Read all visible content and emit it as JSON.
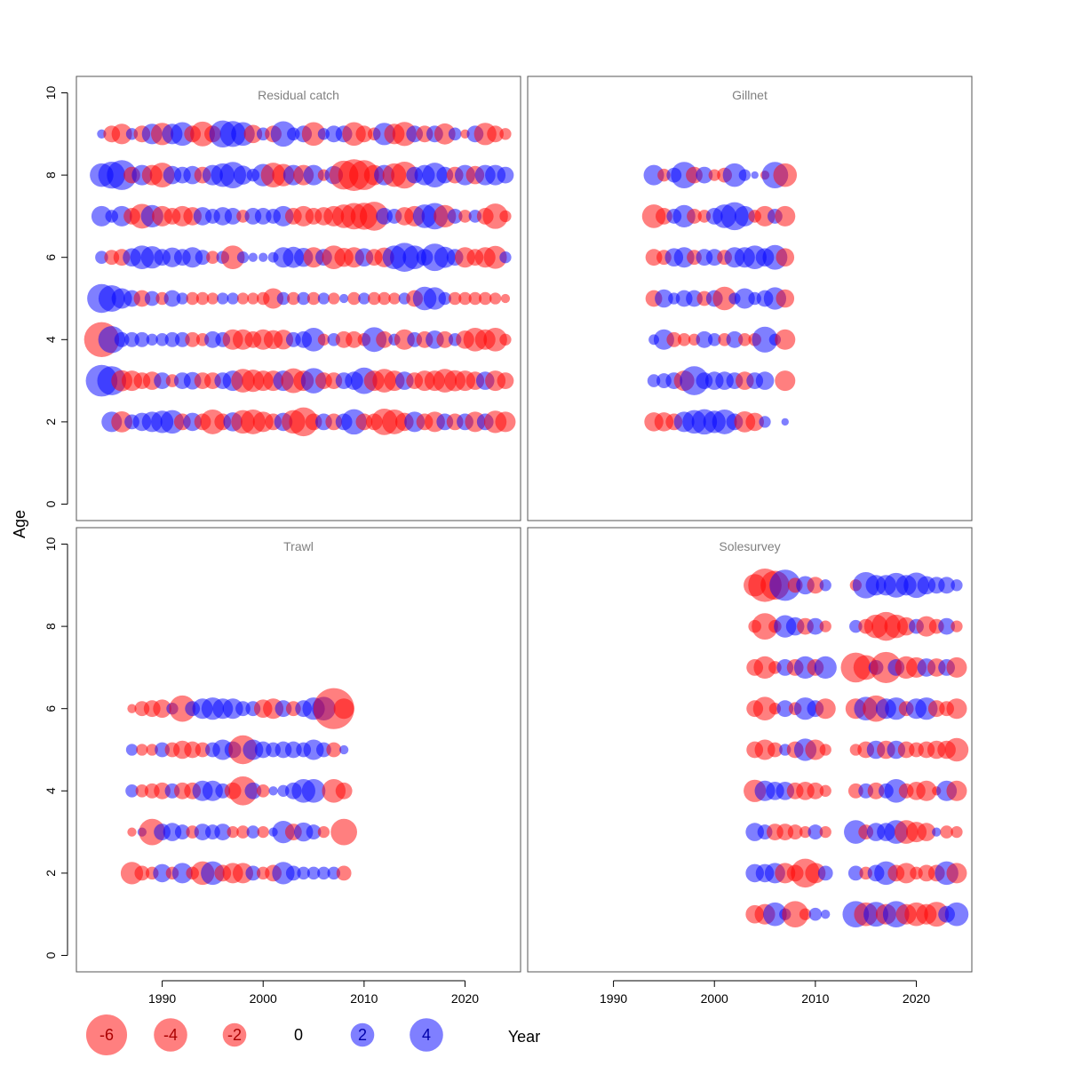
{
  "chart_data": {
    "type": "scatter",
    "style": "bubble",
    "xlabel": "Year",
    "ylabel": "Age",
    "xlim": [
      1981.5,
      2025.5
    ],
    "ylim": [
      -0.4,
      10.4
    ],
    "xticks": [
      1990,
      2000,
      2010,
      2020
    ],
    "yticks": [
      0,
      2,
      4,
      6,
      8,
      10
    ],
    "grid": false,
    "colors": {
      "positive": "#0000ff",
      "negative": "#ff0000",
      "opacity": 0.5
    },
    "panels": [
      {
        "title": "Residual catch",
        "ages": [
          2,
          3,
          4,
          5,
          6,
          7,
          8,
          9
        ],
        "years": [
          1984,
          1985,
          1986,
          1987,
          1988,
          1989,
          1990,
          1991,
          1992,
          1993,
          1994,
          1995,
          1996,
          1997,
          1998,
          1999,
          2000,
          2001,
          2002,
          2003,
          2004,
          2005,
          2006,
          2007,
          2008,
          2009,
          2010,
          2011,
          2012,
          2013,
          2014,
          2015,
          2016,
          2017,
          2018,
          2019,
          2020,
          2021,
          2022,
          2023,
          2024
        ],
        "residuals": [
          [
            0.0,
            1.5,
            -1.6,
            0.8,
            1.2,
            1.5,
            1.8,
            2.0,
            -1.0,
            1.2,
            -1.0,
            -2.2,
            -1.0,
            1.3,
            -2.0,
            -2.2,
            -1.5,
            -1.0,
            1.2,
            -2.0,
            -3.0,
            -1.0,
            1.0,
            -1.0,
            1.0,
            2.3,
            -1.0,
            -1.0,
            -2.5,
            -2.2,
            -1.2,
            1.5,
            -1.0,
            -1.5,
            1.0,
            -1.0,
            1.0,
            -1.5,
            1.0,
            -1.8,
            -1.5
          ],
          [
            3.6,
            3.0,
            -1.6,
            -1.5,
            -1.0,
            -1.2,
            1.0,
            -0.6,
            1.0,
            1.1,
            -1.0,
            -1.0,
            1.0,
            1.5,
            -2.0,
            -1.8,
            -1.5,
            -1.5,
            1.5,
            -2.2,
            -1.5,
            2.3,
            -1.0,
            -1.0,
            1.0,
            1.2,
            2.5,
            -1.5,
            -2.0,
            -1.5,
            1.2,
            -1.0,
            -1.5,
            -1.5,
            -2.0,
            -1.6,
            -1.5,
            -1.2,
            1.2,
            -1.5,
            -1.0
          ],
          [
            -4.4,
            2.6,
            0.8,
            0.8,
            0.8,
            0.5,
            0.6,
            0.8,
            0.8,
            -0.8,
            -0.6,
            1.0,
            0.8,
            -1.5,
            -1.5,
            -1.0,
            -1.5,
            -1.3,
            -1.4,
            0.8,
            1.0,
            2.0,
            -0.5,
            0.6,
            -1.0,
            -1.0,
            -0.6,
            2.2,
            -1.0,
            0.5,
            -1.5,
            0.8,
            -1.0,
            1.2,
            -1.0,
            0.6,
            -1.2,
            -2.0,
            -1.5,
            -2.0,
            -0.5
          ],
          [
            3.0,
            2.5,
            1.5,
            1.0,
            -1.0,
            0.8,
            -0.6,
            1.0,
            0.5,
            -0.6,
            -0.6,
            -0.5,
            0.5,
            0.5,
            -0.5,
            -0.5,
            -0.6,
            -1.5,
            0.6,
            -0.6,
            0.6,
            -0.6,
            0.5,
            -0.5,
            0.3,
            -0.6,
            0.5,
            -0.6,
            -0.6,
            -0.5,
            0.5,
            -1.0,
            2.0,
            1.8,
            0.6,
            -0.6,
            -0.6,
            -0.6,
            -0.6,
            -0.5,
            -0.3
          ],
          [
            0.6,
            -0.8,
            -1.0,
            1.2,
            2.0,
            1.8,
            1.0,
            1.4,
            1.0,
            1.5,
            0.8,
            -0.6,
            0.6,
            -2.0,
            0.5,
            0.3,
            0.3,
            0.4,
            1.5,
            1.6,
            1.3,
            -1.5,
            1.0,
            -2.0,
            -1.3,
            -1.5,
            1.2,
            -1.0,
            -1.4,
            2.0,
            3.0,
            2.0,
            1.0,
            2.7,
            1.6,
            1.0,
            -1.5,
            -1.0,
            -1.5,
            -1.9,
            0.5
          ],
          [
            1.5,
            0.6,
            1.5,
            -1.0,
            -2.2,
            1.8,
            -1.5,
            -1.0,
            -1.5,
            -1.2,
            1.2,
            0.8,
            1.2,
            1.0,
            -0.6,
            1.0,
            1.0,
            0.8,
            1.5,
            -1.0,
            -1.5,
            -1.0,
            -1.2,
            -1.5,
            -2.0,
            -2.5,
            -2.6,
            -3.0,
            1.0,
            0.8,
            -1.2,
            -1.5,
            2.0,
            2.5,
            -1.8,
            0.8,
            -0.6,
            0.6,
            -1.0,
            -2.3,
            -0.5
          ],
          [
            2.0,
            2.6,
            3.2,
            -1.0,
            1.5,
            -1.5,
            -2.2,
            1.2,
            1.0,
            1.2,
            -1.0,
            1.5,
            2.0,
            2.5,
            1.3,
            0.6,
            1.8,
            -2.2,
            -1.8,
            1.5,
            -1.5,
            1.5,
            -0.5,
            1.2,
            -3.0,
            -3.6,
            -3.2,
            -1.5,
            1.5,
            -2.0,
            -2.6,
            1.0,
            1.5,
            2.2,
            1.0,
            -1.0,
            1.5,
            -1.2,
            1.5,
            1.5,
            1.0
          ],
          [
            0.3,
            -1.0,
            -1.5,
            0.5,
            -1.0,
            1.5,
            -1.8,
            1.5,
            2.0,
            -1.0,
            -2.2,
            -1.0,
            2.6,
            2.4,
            2.0,
            -1.2,
            0.6,
            -1.0,
            2.3,
            0.6,
            1.0,
            -2.0,
            0.5,
            1.0,
            1.0,
            -2.0,
            -1.0,
            -0.6,
            1.8,
            -1.5,
            -2.1,
            1.0,
            -1.0,
            1.0,
            -1.6,
            0.6,
            -0.3,
            1.0,
            -1.8,
            -1.0,
            -0.5
          ]
        ]
      },
      {
        "title": "Gillnet",
        "ages": [
          2,
          3,
          4,
          5,
          6,
          7,
          8
        ],
        "years": [
          1994,
          1995,
          1996,
          1997,
          1998,
          1999,
          2000,
          2001,
          2002,
          2003,
          2004,
          2005,
          2006,
          2007
        ],
        "residuals": [
          [
            -1.3,
            -1.3,
            -1.0,
            1.5,
            2.0,
            2.3,
            1.8,
            2.2,
            1.0,
            -1.6,
            -1.2,
            0.5,
            0.0,
            0.2
          ],
          [
            0.6,
            0.8,
            1.0,
            -1.5,
            3.0,
            1.0,
            1.2,
            1.2,
            1.0,
            -1.2,
            1.0,
            1.2,
            0.0,
            -1.5
          ],
          [
            0.4,
            1.5,
            -0.8,
            -0.6,
            -0.5,
            1.0,
            0.6,
            -0.6,
            1.0,
            -0.6,
            -0.6,
            2.4,
            0.5,
            -1.5
          ],
          [
            -1.0,
            1.2,
            0.5,
            1.0,
            1.0,
            -0.8,
            1.0,
            -2.0,
            0.5,
            1.5,
            0.6,
            1.0,
            1.8,
            -1.2
          ],
          [
            -1.0,
            -0.8,
            1.2,
            1.5,
            -0.8,
            1.0,
            1.0,
            -0.8,
            1.5,
            1.5,
            2.0,
            1.2,
            2.2,
            -1.2
          ],
          [
            -2.0,
            -1.0,
            0.8,
            1.8,
            -0.8,
            -0.6,
            1.0,
            2.0,
            2.8,
            1.5,
            -0.6,
            -1.5,
            0.8,
            -1.5
          ],
          [
            1.5,
            -0.6,
            0.8,
            2.5,
            -1.0,
            1.0,
            -0.5,
            -0.8,
            2.0,
            0.5,
            0.2,
            -0.3,
            2.5,
            -2.0
          ]
        ]
      },
      {
        "title": "Trawl",
        "ages": [
          2,
          3,
          4,
          5,
          6
        ],
        "years": [
          1987,
          1988,
          1989,
          1990,
          1991,
          1992,
          1993,
          1994,
          1995,
          1996,
          1997,
          1998,
          1999,
          2000,
          2001,
          2002,
          2003,
          2004,
          2005,
          2006,
          2007,
          2008
        ],
        "residuals": [
          [
            -1.8,
            -0.8,
            -0.6,
            1.2,
            -0.6,
            1.5,
            -0.6,
            -2.0,
            2.0,
            -1.0,
            -1.5,
            -1.5,
            0.8,
            -0.6,
            -1.0,
            1.8,
            0.8,
            0.6,
            0.6,
            0.6,
            0.6,
            -0.8
          ],
          [
            -0.3,
            0.3,
            -2.5,
            1.0,
            1.2,
            0.8,
            -0.6,
            1.0,
            0.8,
            1.0,
            -0.5,
            -0.6,
            0.6,
            -0.5,
            0.3,
            1.8,
            -1.0,
            1.3,
            0.8,
            -0.5,
            0.0,
            -2.5
          ],
          [
            0.6,
            -0.6,
            -0.8,
            -1.0,
            0.8,
            -1.0,
            -1.0,
            1.5,
            1.5,
            0.8,
            -1.0,
            -3.0,
            1.0,
            -0.6,
            0.3,
            0.5,
            1.0,
            2.0,
            2.0,
            0.0,
            -2.0,
            -1.0
          ],
          [
            0.5,
            -0.5,
            -0.5,
            0.8,
            -0.8,
            -1.2,
            -1.0,
            -0.8,
            0.8,
            1.5,
            1.0,
            -3.0,
            1.5,
            1.0,
            0.8,
            1.0,
            1.0,
            0.8,
            1.5,
            0.8,
            -0.8,
            0.3
          ],
          [
            -0.3,
            -0.8,
            -1.0,
            -1.2,
            0.5,
            -2.5,
            0.8,
            1.5,
            1.8,
            1.5,
            1.5,
            0.8,
            0.8,
            -1.2,
            -1.5,
            1.0,
            -0.8,
            1.0,
            1.8,
            2.0,
            -6.0,
            -1.5
          ]
        ]
      },
      {
        "title": "Solesurvey",
        "ages": [
          1,
          2,
          3,
          4,
          5,
          6,
          7,
          8,
          9
        ],
        "years": [
          2004,
          2005,
          2006,
          2007,
          2008,
          2009,
          2010,
          2011,
          2014,
          2015,
          2016,
          2017,
          2018,
          2019,
          2020,
          2021,
          2022,
          2023,
          2024
        ],
        "residuals": [
          [
            -1.2,
            -1.5,
            2.0,
            0.5,
            -2.5,
            -0.5,
            0.6,
            0.3,
            2.5,
            -2.0,
            2.2,
            -1.5,
            2.5,
            -1.5,
            -2.0,
            -1.5,
            -2.2,
            1.0,
            2.0
          ],
          [
            1.2,
            1.2,
            1.5,
            -1.5,
            -1.0,
            -3.0,
            -1.5,
            0.8,
            0.8,
            -0.6,
            1.0,
            2.0,
            -1.0,
            -1.5,
            -0.6,
            -1.0,
            -1.0,
            2.0,
            -1.5
          ],
          [
            1.2,
            0.8,
            -1.0,
            -1.0,
            -0.8,
            -0.5,
            0.8,
            -0.5,
            2.0,
            -0.8,
            1.2,
            1.2,
            2.0,
            -2.0,
            -1.5,
            -1.2,
            0.3,
            -0.6,
            -0.5
          ],
          [
            -1.8,
            1.5,
            1.2,
            1.2,
            -1.0,
            -1.2,
            -1.0,
            -0.5,
            -0.8,
            0.8,
            -1.0,
            0.8,
            2.0,
            -0.8,
            -1.2,
            -1.5,
            -0.3,
            1.5,
            -1.5
          ],
          [
            -1.0,
            -1.5,
            -0.8,
            0.5,
            -1.0,
            1.8,
            -1.5,
            -0.5,
            -0.5,
            -1.0,
            1.2,
            -1.2,
            1.2,
            -1.0,
            -0.8,
            -1.0,
            -1.2,
            -1.2,
            -2.0
          ],
          [
            -1.0,
            -2.0,
            -0.5,
            1.0,
            -0.6,
            1.8,
            1.0,
            -1.5,
            -1.5,
            2.0,
            -2.5,
            1.5,
            1.8,
            -0.8,
            1.5,
            1.8,
            -1.0,
            -0.8,
            -1.5
          ],
          [
            -1.0,
            -1.8,
            -0.6,
            1.0,
            -1.0,
            1.8,
            -1.0,
            1.8,
            -3.2,
            -2.2,
            0.8,
            -3.5,
            1.0,
            -1.8,
            -1.5,
            1.2,
            -1.2,
            1.0,
            -1.5
          ],
          [
            -0.6,
            -2.5,
            -0.6,
            1.8,
            1.2,
            -1.0,
            1.0,
            -0.5,
            0.6,
            -0.8,
            -2.0,
            -3.0,
            -2.0,
            -1.2,
            0.8,
            -1.5,
            -0.8,
            1.0,
            -0.5
          ],
          [
            -1.8,
            -4.0,
            -3.0,
            3.5,
            -0.8,
            1.2,
            -1.0,
            0.5,
            -0.5,
            2.5,
            1.5,
            1.5,
            2.2,
            1.5,
            2.3,
            1.2,
            1.0,
            1.0,
            0.5
          ]
        ]
      }
    ],
    "legend": {
      "placement": "bottom-left",
      "values": [
        -6,
        -4,
        -2,
        0,
        2,
        4
      ],
      "labels": [
        "-6",
        "-4",
        "-2",
        "0",
        "2",
        "4"
      ]
    }
  }
}
